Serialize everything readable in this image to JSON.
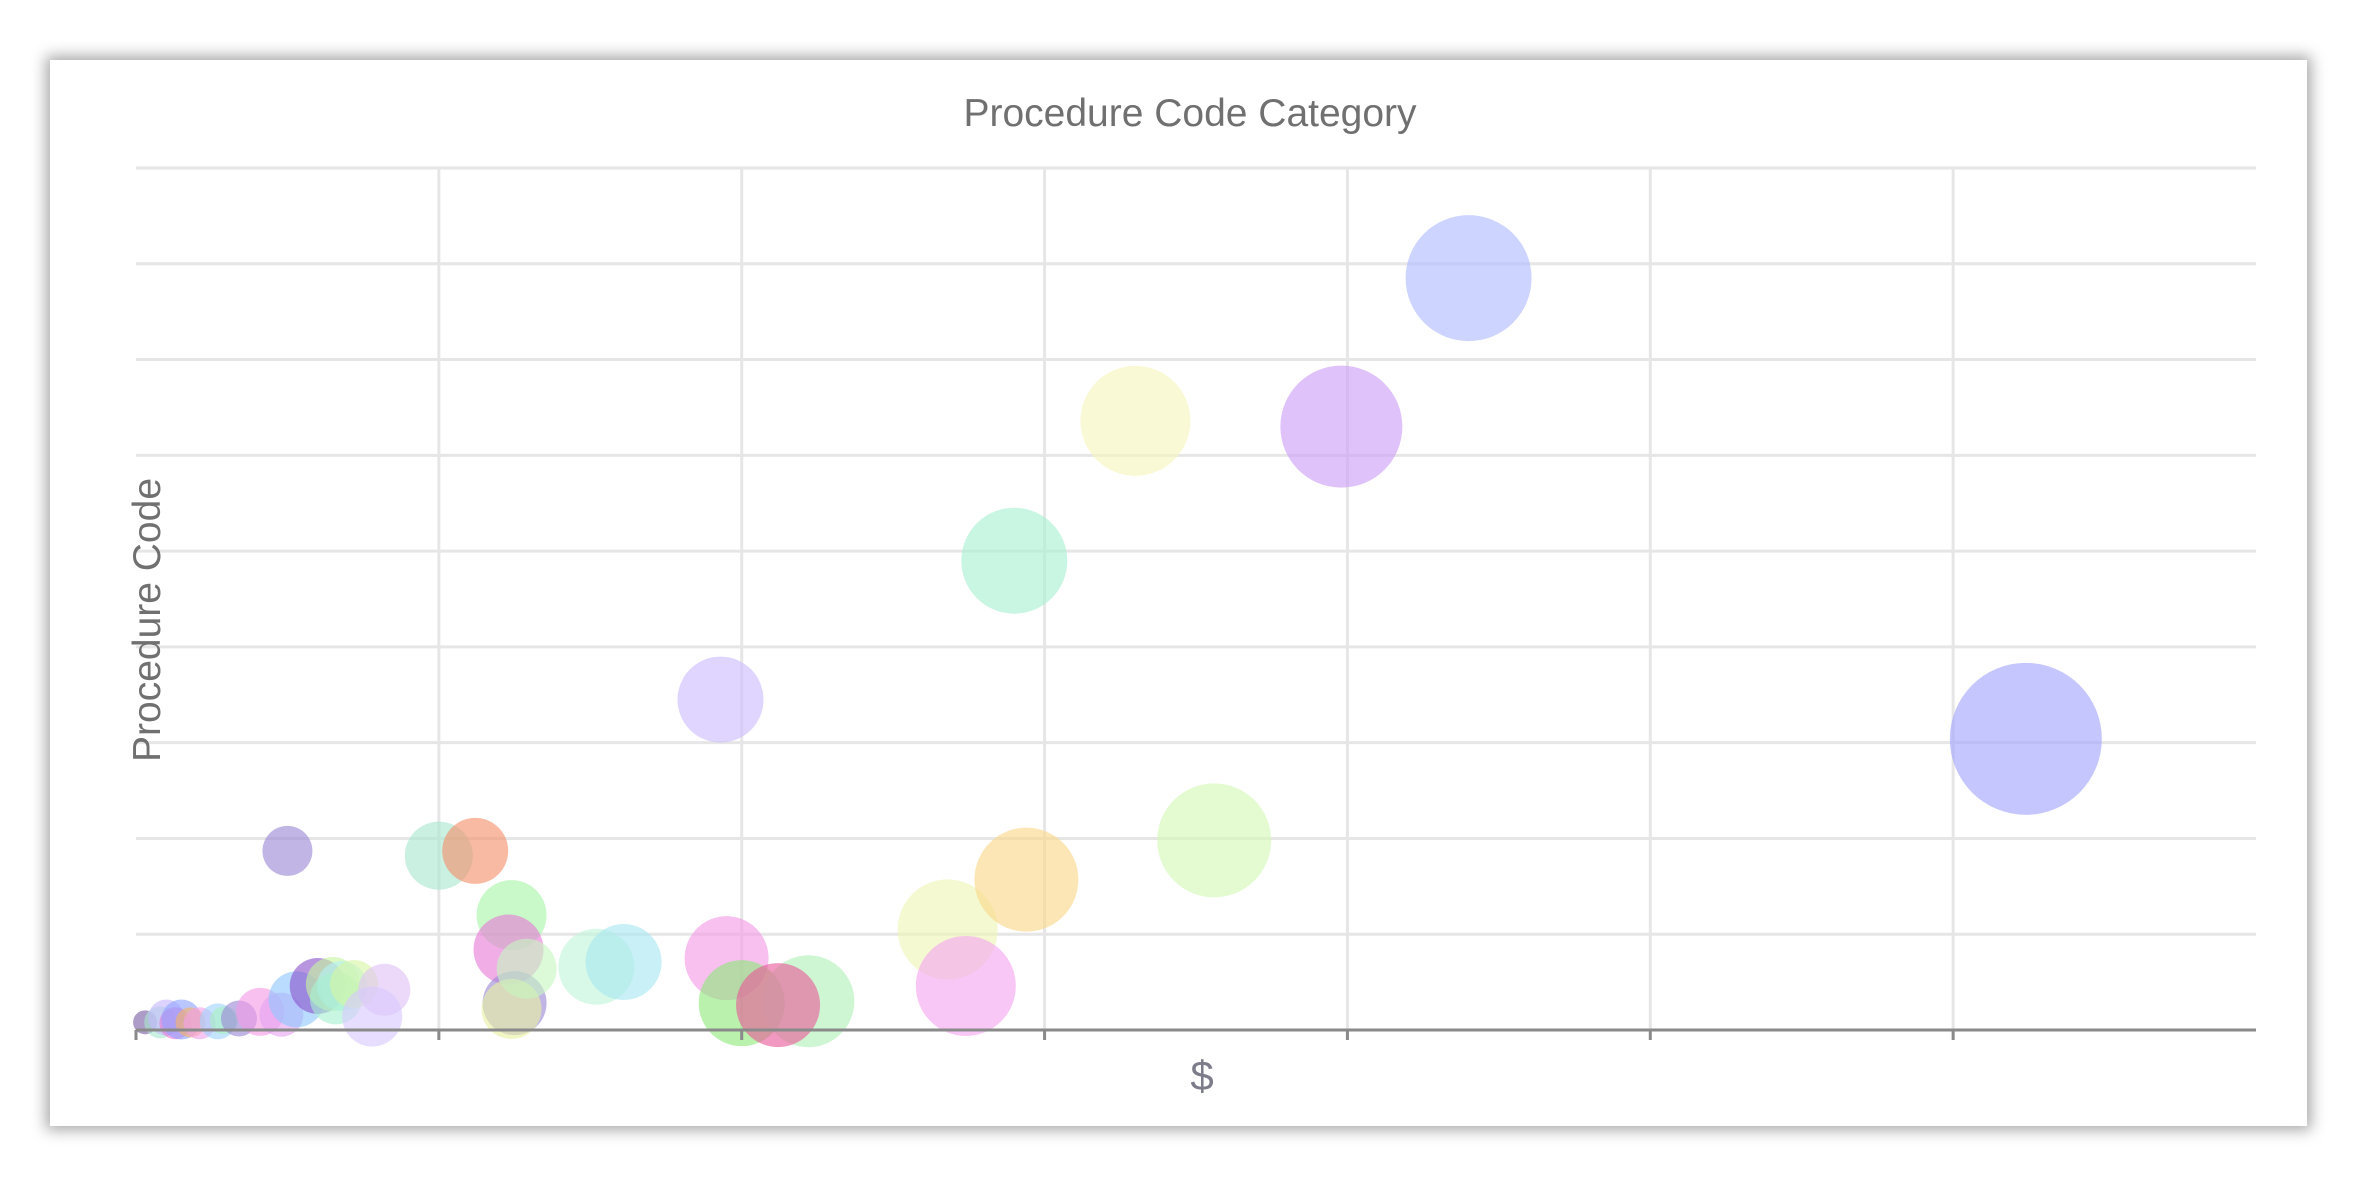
{
  "chart_data": {
    "type": "bubble",
    "title": "Procedure Code Category",
    "xlabel": "$",
    "ylabel": "Procedure Code",
    "x_gridlines": 7,
    "y_gridlines": 9,
    "tick_labels_visible": false,
    "grid": true,
    "legend": "none",
    "points": [
      {
        "x": 0.03,
        "y": 0.08,
        "r": 12,
        "color": "#7b5ea7"
      },
      {
        "x": 0.08,
        "y": 0.08,
        "r": 16,
        "color": "#a8e6cf"
      },
      {
        "x": 0.1,
        "y": 0.13,
        "r": 18,
        "color": "#c7b9ff"
      },
      {
        "x": 0.13,
        "y": 0.07,
        "r": 16,
        "color": "#e67ad6"
      },
      {
        "x": 0.15,
        "y": 0.11,
        "r": 20,
        "color": "#8fa3ff"
      },
      {
        "x": 0.18,
        "y": 0.08,
        "r": 15,
        "color": "#f7b267"
      },
      {
        "x": 0.21,
        "y": 0.07,
        "r": 16,
        "color": "#f2a2e8"
      },
      {
        "x": 0.27,
        "y": 0.09,
        "r": 18,
        "color": "#9fd3ff"
      },
      {
        "x": 0.29,
        "y": 0.1,
        "r": 14,
        "color": "#a8f0c0"
      },
      {
        "x": 0.34,
        "y": 0.12,
        "r": 18,
        "color": "#9b87d6"
      },
      {
        "x": 0.41,
        "y": 0.19,
        "r": 24,
        "color": "#f29ae5"
      },
      {
        "x": 0.48,
        "y": 0.16,
        "r": 22,
        "color": "#e6a3f2"
      },
      {
        "x": 0.53,
        "y": 0.32,
        "r": 28,
        "color": "#8ec7ff"
      },
      {
        "x": 0.6,
        "y": 0.46,
        "r": 28,
        "color": "#8b55cc"
      },
      {
        "x": 0.65,
        "y": 0.48,
        "r": 27,
        "color": "#c7f5a0"
      },
      {
        "x": 0.68,
        "y": 0.46,
        "r": 25,
        "color": "#b3f0f5"
      },
      {
        "x": 0.66,
        "y": 0.33,
        "r": 26,
        "color": "#a8f0d0"
      },
      {
        "x": 0.72,
        "y": 0.48,
        "r": 24,
        "color": "#d6f5a5"
      },
      {
        "x": 0.82,
        "y": 0.42,
        "r": 26,
        "color": "#e0c2f5"
      },
      {
        "x": 0.78,
        "y": 0.14,
        "r": 30,
        "color": "#d9c8ff"
      },
      {
        "x": 0.5,
        "y": 1.87,
        "r": 25,
        "color": "#9b87d6"
      },
      {
        "x": 1.0,
        "y": 1.82,
        "r": 34,
        "color": "#a8e6cf"
      },
      {
        "x": 1.12,
        "y": 1.87,
        "r": 33,
        "color": "#f5906b"
      },
      {
        "x": 1.24,
        "y": 1.2,
        "r": 35,
        "color": "#a8f5a8"
      },
      {
        "x": 1.23,
        "y": 0.84,
        "r": 35,
        "color": "#e67ad6"
      },
      {
        "x": 1.25,
        "y": 0.28,
        "r": 32,
        "color": "#9b87d6"
      },
      {
        "x": 1.24,
        "y": 0.22,
        "r": 30,
        "color": "#e8f0a0"
      },
      {
        "x": 1.29,
        "y": 0.64,
        "r": 30,
        "color": "#c7f5c0"
      },
      {
        "x": 1.52,
        "y": 0.66,
        "r": 38,
        "color": "#c0f5d8"
      },
      {
        "x": 1.61,
        "y": 0.71,
        "r": 38,
        "color": "#a8e6f0"
      },
      {
        "x": 1.93,
        "y": 3.45,
        "r": 43,
        "color": "#cbbcff"
      },
      {
        "x": 1.95,
        "y": 0.75,
        "r": 42,
        "color": "#f29ae5"
      },
      {
        "x": 2.0,
        "y": 0.28,
        "r": 43,
        "color": "#8ee87a"
      },
      {
        "x": 2.22,
        "y": 0.3,
        "r": 46,
        "color": "#b2f0b8"
      },
      {
        "x": 2.12,
        "y": 0.26,
        "r": 42,
        "color": "#e85a9a"
      },
      {
        "x": 2.68,
        "y": 1.05,
        "r": 50,
        "color": "#eef5b5"
      },
      {
        "x": 2.74,
        "y": 0.46,
        "r": 50,
        "color": "#f5a5f0"
      },
      {
        "x": 2.94,
        "y": 1.57,
        "r": 52,
        "color": "#fad788"
      },
      {
        "x": 2.9,
        "y": 4.9,
        "r": 53,
        "color": "#a8f0d0"
      },
      {
        "x": 3.3,
        "y": 6.36,
        "r": 55,
        "color": "#f7f5bb"
      },
      {
        "x": 3.56,
        "y": 1.98,
        "r": 57,
        "color": "#d4f8b6"
      },
      {
        "x": 3.98,
        "y": 6.3,
        "r": 61,
        "color": "#cb9cf5"
      },
      {
        "x": 4.4,
        "y": 7.85,
        "r": 63,
        "color": "#aeb9ff"
      },
      {
        "x": 6.24,
        "y": 3.04,
        "r": 76,
        "color": "#a3a3ff"
      }
    ],
    "xlim": [
      0,
      7
    ],
    "ylim": [
      0,
      9
    ]
  }
}
